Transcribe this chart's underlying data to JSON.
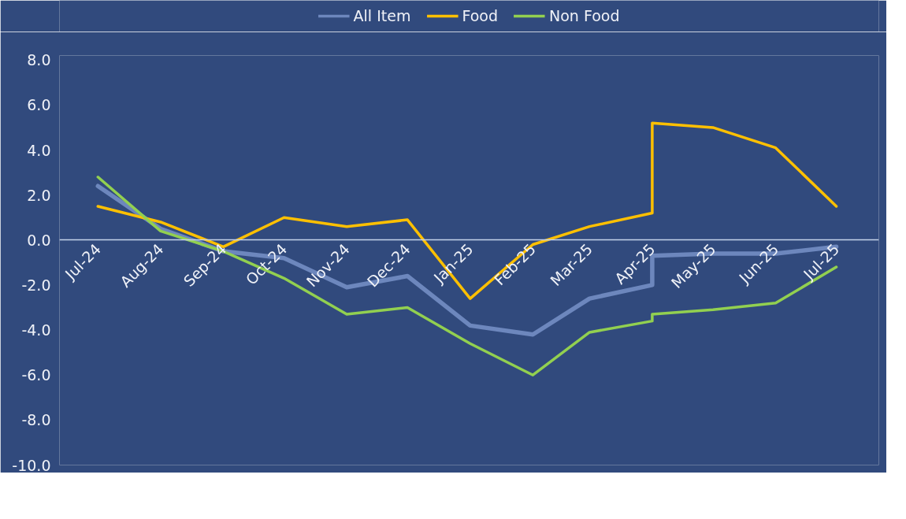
{
  "chart_data": {
    "type": "line",
    "x": [
      "2024-07",
      "2024-08",
      "2024-09",
      "2024-10",
      "2024-11",
      "2024-12",
      "2025-01",
      "2025-02",
      "2025-03",
      "2025-04",
      "2025-04",
      "2025-05",
      "2025-06",
      "2025-07"
    ],
    "series": [
      {
        "name": "All Item",
        "color": "#6d87bd",
        "values": [
          2.4,
          0.5,
          -0.5,
          -0.8,
          -2.1,
          -1.6,
          -3.8,
          -4.2,
          -2.6,
          -2.0,
          -0.7,
          -0.6,
          -0.6,
          -0.3
        ]
      },
      {
        "name": "Food",
        "color": "#ffc000",
        "values": [
          1.5,
          0.8,
          -0.3,
          1.0,
          0.6,
          0.9,
          -2.6,
          -0.2,
          0.6,
          1.2,
          5.2,
          5.0,
          4.1,
          1.5
        ]
      },
      {
        "name": "Non Food",
        "color": "#92d050",
        "values": [
          2.8,
          0.4,
          -0.5,
          -1.7,
          -3.3,
          -3.0,
          -4.6,
          -6.0,
          -4.1,
          -3.6,
          -3.3,
          -3.1,
          -2.8,
          -1.2
        ]
      }
    ],
    "xlim": [
      "2024-06-12",
      "2025-07-22"
    ],
    "xticks": [
      {
        "value": "2024-07",
        "label": "Jul-24"
      },
      {
        "value": "2024-08",
        "label": "Aug-24"
      },
      {
        "value": "2024-09",
        "label": "Sep-24"
      },
      {
        "value": "2024-10",
        "label": "Oct-24"
      },
      {
        "value": "2024-11",
        "label": "Nov-24"
      },
      {
        "value": "2024-12",
        "label": "Dec-24"
      },
      {
        "value": "2025-01",
        "label": "Jan-25"
      },
      {
        "value": "2025-02",
        "label": "Feb-25"
      },
      {
        "value": "2025-03",
        "label": "Mar-25"
      },
      {
        "value": "2025-04",
        "label": "Apr-25"
      },
      {
        "value": "2025-05",
        "label": "May-25"
      },
      {
        "value": "2025-06",
        "label": "Jun-25"
      },
      {
        "value": "2025-07",
        "label": "Jul-25"
      }
    ],
    "ylim": [
      -10,
      8.2
    ],
    "yticks": [
      {
        "value": -10,
        "label": "-10.0"
      },
      {
        "value": -8,
        "label": "-8.0"
      },
      {
        "value": -6,
        "label": "-6.0"
      },
      {
        "value": -4,
        "label": "-4.0"
      },
      {
        "value": -2,
        "label": "-2.0"
      },
      {
        "value": 0,
        "label": "0.0"
      },
      {
        "value": 2,
        "label": "2.0"
      },
      {
        "value": 4,
        "label": "4.0"
      },
      {
        "value": 6,
        "label": "6.0"
      },
      {
        "value": 8,
        "label": "8.0"
      }
    ],
    "grid": false,
    "legend": "top",
    "marker": "none",
    "line_style": "solid"
  }
}
